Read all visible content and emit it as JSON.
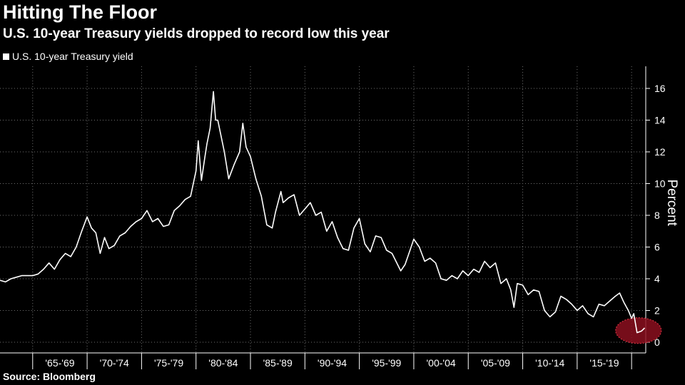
{
  "chart_data": {
    "type": "line",
    "title": "Hitting The Floor",
    "subtitle": "U.S. 10-year Treasury yields dropped to record low this year",
    "ylabel": "Percent",
    "source": "Source: Bloomberg",
    "ylim": [
      0,
      16.5
    ],
    "yticks": [
      0,
      2,
      4,
      6,
      8,
      10,
      12,
      14,
      16
    ],
    "xlim": [
      1962,
      2021.3
    ],
    "x_categories": [
      "'65-'69",
      "'70-'74",
      "'75-'79",
      "'80-'84",
      "'85-'89",
      "'90-'94",
      "'95-'99",
      "'00-'04",
      "'05-'09",
      "'10-'14",
      "'15-'19"
    ],
    "x_category_starts": [
      1965,
      1970,
      1975,
      1980,
      1985,
      1990,
      1995,
      2000,
      2005,
      2010,
      2015
    ],
    "legend_position": "top-left",
    "grid": true,
    "highlight": {
      "x": 2020.5,
      "y": 0.6,
      "color": "#8b0f1f"
    },
    "series": [
      {
        "name": "U.S. 10-year Treasury yield",
        "color": "#ffffff",
        "x": [
          1962.0,
          1962.5,
          1963.0,
          1963.5,
          1964.0,
          1964.5,
          1965.0,
          1965.5,
          1966.0,
          1966.5,
          1967.0,
          1967.5,
          1968.0,
          1968.5,
          1969.0,
          1969.5,
          1970.0,
          1970.4,
          1970.8,
          1971.2,
          1971.6,
          1972.0,
          1972.5,
          1973.0,
          1973.5,
          1974.0,
          1974.5,
          1975.0,
          1975.5,
          1976.0,
          1976.5,
          1977.0,
          1977.5,
          1978.0,
          1978.5,
          1979.0,
          1979.5,
          1980.0,
          1980.2,
          1980.5,
          1980.8,
          1981.0,
          1981.3,
          1981.6,
          1981.8,
          1982.0,
          1982.3,
          1982.6,
          1983.0,
          1983.5,
          1984.0,
          1984.3,
          1984.6,
          1985.0,
          1985.5,
          1986.0,
          1986.5,
          1987.0,
          1987.3,
          1987.8,
          1988.0,
          1988.5,
          1989.0,
          1989.5,
          1990.0,
          1990.5,
          1991.0,
          1991.5,
          1992.0,
          1992.5,
          1993.0,
          1993.5,
          1994.0,
          1994.5,
          1995.0,
          1995.5,
          1996.0,
          1996.5,
          1997.0,
          1997.5,
          1998.0,
          1998.8,
          1999.2,
          1999.7,
          2000.0,
          2000.5,
          2001.0,
          2001.5,
          2002.0,
          2002.5,
          2003.0,
          2003.5,
          2004.0,
          2004.5,
          2005.0,
          2005.5,
          2006.0,
          2006.5,
          2007.0,
          2007.5,
          2008.0,
          2008.5,
          2008.9,
          2009.2,
          2009.5,
          2010.0,
          2010.5,
          2011.0,
          2011.5,
          2012.0,
          2012.5,
          2013.0,
          2013.5,
          2014.0,
          2014.5,
          2015.0,
          2015.5,
          2016.0,
          2016.5,
          2017.0,
          2017.5,
          2018.0,
          2018.5,
          2018.9,
          2019.3,
          2019.7,
          2020.0,
          2020.2,
          2020.5,
          2020.9,
          2021.2
        ],
        "y": [
          3.9,
          3.8,
          4.0,
          4.1,
          4.2,
          4.2,
          4.2,
          4.3,
          4.6,
          5.0,
          4.6,
          5.2,
          5.6,
          5.4,
          6.0,
          7.0,
          7.9,
          7.2,
          6.9,
          5.6,
          6.6,
          5.9,
          6.1,
          6.7,
          6.9,
          7.3,
          7.6,
          7.8,
          8.3,
          7.6,
          7.8,
          7.3,
          7.4,
          8.3,
          8.6,
          9.0,
          9.2,
          10.8,
          12.7,
          10.2,
          11.6,
          12.5,
          13.5,
          15.8,
          14.0,
          14.0,
          13.0,
          12.0,
          10.3,
          11.2,
          12.0,
          13.8,
          12.3,
          11.7,
          10.3,
          9.2,
          7.4,
          7.2,
          8.2,
          9.5,
          8.8,
          9.1,
          9.3,
          8.0,
          8.4,
          8.8,
          8.0,
          8.2,
          7.0,
          7.6,
          6.6,
          5.9,
          5.8,
          7.2,
          7.8,
          6.2,
          5.7,
          6.7,
          6.6,
          5.8,
          5.6,
          4.5,
          4.9,
          5.9,
          6.5,
          6.0,
          5.1,
          5.3,
          5.0,
          4.0,
          3.9,
          4.2,
          4.0,
          4.5,
          4.2,
          4.6,
          4.4,
          5.1,
          4.7,
          5.0,
          3.7,
          4.0,
          3.3,
          2.2,
          3.7,
          3.6,
          3.0,
          3.3,
          3.2,
          2.0,
          1.6,
          1.9,
          2.9,
          2.7,
          2.4,
          2.0,
          2.3,
          1.8,
          1.6,
          2.4,
          2.3,
          2.6,
          2.9,
          3.1,
          2.5,
          2.0,
          1.5,
          1.8,
          0.6,
          0.7,
          0.9
        ]
      }
    ]
  }
}
